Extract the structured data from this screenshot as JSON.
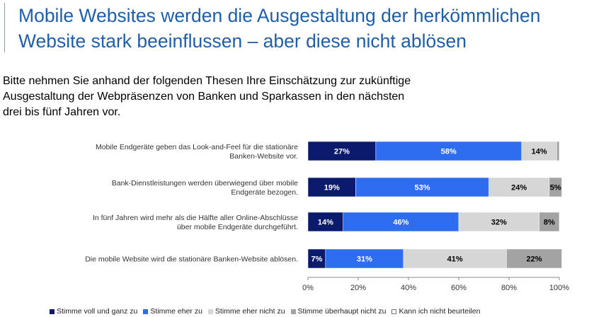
{
  "title_lines": [
    "Mobile Websites werden die Ausgestaltung der herkömmlichen",
    "Website stark beeinflussen – aber diese nicht ablösen"
  ],
  "subtitle_lines": [
    "Bitte nehmen Sie anhand der folgenden Thesen Ihre Einschätzung zur zukünftige",
    "Ausgestaltung der Webpräsenzen von Banken und Sparkassen in den nächsten",
    "drei bis fünf Jahren vor."
  ],
  "chart_data": {
    "type": "bar",
    "orientation": "horizontal",
    "stacked": true,
    "categories": [
      [
        "Mobile Endgeräte geben das Look-and-Feel für die stationäre",
        "Banken-Website vor."
      ],
      [
        "Bank-Dienstleistungen werden überwiegend über mobile",
        "Endgeräte bezogen."
      ],
      [
        "In fünf Jahren wird mehr als die Hälfte aller Online-Abschlüsse",
        "über mobile Endgeräte durchgeführt."
      ],
      [
        "Die mobile Website wird die stationäre Banken-Website ablösen."
      ]
    ],
    "series": [
      {
        "name": "Stimme voll und ganz zu",
        "color": "#0c1a6e",
        "label_color": "#ffffff",
        "values": [
          27,
          19,
          14,
          7
        ],
        "labels": [
          "27%",
          "19%",
          "14%",
          "7%"
        ]
      },
      {
        "name": "Stimme eher zu",
        "color": "#2f6df0",
        "label_color": "#ffffff",
        "values": [
          58,
          53,
          46,
          31
        ],
        "labels": [
          "58%",
          "53%",
          "46%",
          "31%"
        ]
      },
      {
        "name": "Stimme eher nicht zu",
        "color": "#d6d6d6",
        "label_color": "#000000",
        "values": [
          14,
          24,
          32,
          41
        ],
        "labels": [
          "14%",
          "24%",
          "32%",
          "41%"
        ]
      },
      {
        "name": "Stimme überhaupt nicht zu",
        "color": "#a3a3a3",
        "label_color": "#000000",
        "values": [
          1,
          5,
          8,
          22
        ],
        "labels": [
          "",
          "5%",
          "8%",
          "22%"
        ]
      },
      {
        "name": "Kann ich nicht beurteilen",
        "color": "#ffffff",
        "label_color": "#000000",
        "values": [
          0,
          0,
          0,
          0
        ],
        "labels": [
          "",
          "",
          "",
          ""
        ]
      }
    ],
    "xlim": [
      0,
      100
    ],
    "xticks": [
      "0%",
      "20%",
      "40%",
      "60%",
      "80%",
      "100%"
    ],
    "legend_position": "bottom",
    "grid": false
  }
}
